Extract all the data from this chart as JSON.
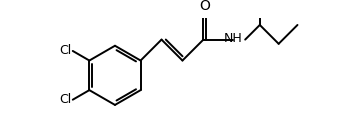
{
  "bg_color": "#ffffff",
  "line_color": "#000000",
  "line_width": 1.4,
  "font_size": 9,
  "cl1_label": "Cl",
  "cl2_label": "Cl",
  "o_label": "O",
  "nh_label": "NH",
  "figsize": [
    3.64,
    1.38
  ],
  "dpi": 100
}
